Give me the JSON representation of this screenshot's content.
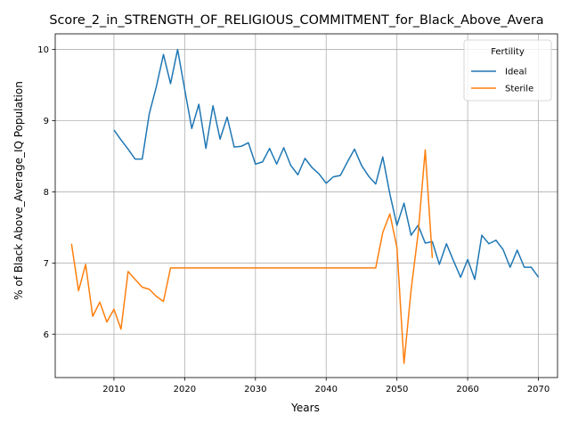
{
  "chart_data": {
    "type": "line",
    "title": "Score_2_in_STRENGTH_OF_RELIGIOUS_COMMITMENT_for_Black_Above_Avera",
    "xlabel": "Years",
    "ylabel": "% of Black Above_Average_IQ Population",
    "xlim": [
      2001.7,
      2072.7
    ],
    "ylim": [
      5.39,
      10.22
    ],
    "xticks": [
      2010,
      2020,
      2030,
      2040,
      2050,
      2060,
      2070
    ],
    "yticks": [
      6,
      7,
      8,
      9,
      10
    ],
    "grid": true,
    "legend": {
      "title": "Fertility",
      "position": "top-right"
    },
    "series": [
      {
        "name": "Ideal",
        "color": "#1f77b4",
        "x": [
          2010,
          2011,
          2012,
          2013,
          2014,
          2015,
          2016,
          2017,
          2018,
          2019,
          2020,
          2021,
          2022,
          2023,
          2024,
          2025,
          2026,
          2027,
          2028,
          2029,
          2030,
          2031,
          2032,
          2033,
          2034,
          2035,
          2036,
          2037,
          2038,
          2039,
          2040,
          2041,
          2042,
          2043,
          2044,
          2045,
          2046,
          2047,
          2048,
          2049,
          2050,
          2051,
          2052,
          2053,
          2054,
          2055,
          2056,
          2057,
          2058,
          2059,
          2060,
          2061,
          2062,
          2063,
          2064,
          2065,
          2066,
          2067,
          2068,
          2069,
          2070
        ],
        "values": [
          8.87,
          8.73,
          8.6,
          8.46,
          8.46,
          9.1,
          9.48,
          9.93,
          9.52,
          10.0,
          9.44,
          8.89,
          9.23,
          8.61,
          9.21,
          8.74,
          9.05,
          8.63,
          8.64,
          8.69,
          8.39,
          8.42,
          8.61,
          8.39,
          8.62,
          8.37,
          8.24,
          8.47,
          8.34,
          8.25,
          8.12,
          8.21,
          8.23,
          8.42,
          8.6,
          8.37,
          8.22,
          8.11,
          8.49,
          7.97,
          7.53,
          7.84,
          7.39,
          7.53,
          7.28,
          7.3,
          6.98,
          7.27,
          7.03,
          6.8,
          7.05,
          6.77,
          7.39,
          7.27,
          7.32,
          7.19,
          6.94,
          7.18,
          6.94,
          6.94,
          6.8
        ]
      },
      {
        "name": "Sterile",
        "color": "#ff7f0e",
        "x": [
          2004,
          2005,
          2006,
          2007,
          2008,
          2009,
          2010,
          2011,
          2012,
          2013,
          2014,
          2015,
          2016,
          2017,
          2018,
          2019,
          2020,
          2021,
          2022,
          2023,
          2024,
          2025,
          2026,
          2027,
          2028,
          2029,
          2030,
          2031,
          2032,
          2033,
          2034,
          2035,
          2036,
          2037,
          2038,
          2039,
          2040,
          2041,
          2042,
          2043,
          2044,
          2045,
          2046,
          2047,
          2048,
          2049,
          2050,
          2051,
          2052,
          2053,
          2054,
          2055
        ],
        "values": [
          7.27,
          6.61,
          6.98,
          6.25,
          6.45,
          6.17,
          6.35,
          6.07,
          6.88,
          6.77,
          6.66,
          6.63,
          6.53,
          6.46,
          6.93,
          6.93,
          6.93,
          6.93,
          6.93,
          6.93,
          6.93,
          6.93,
          6.93,
          6.93,
          6.93,
          6.93,
          6.93,
          6.93,
          6.93,
          6.93,
          6.93,
          6.93,
          6.93,
          6.93,
          6.93,
          6.93,
          6.93,
          6.93,
          6.93,
          6.93,
          6.93,
          6.93,
          6.93,
          6.93,
          7.43,
          7.69,
          7.22,
          5.59,
          6.62,
          7.42,
          8.59,
          7.07
        ]
      }
    ]
  }
}
